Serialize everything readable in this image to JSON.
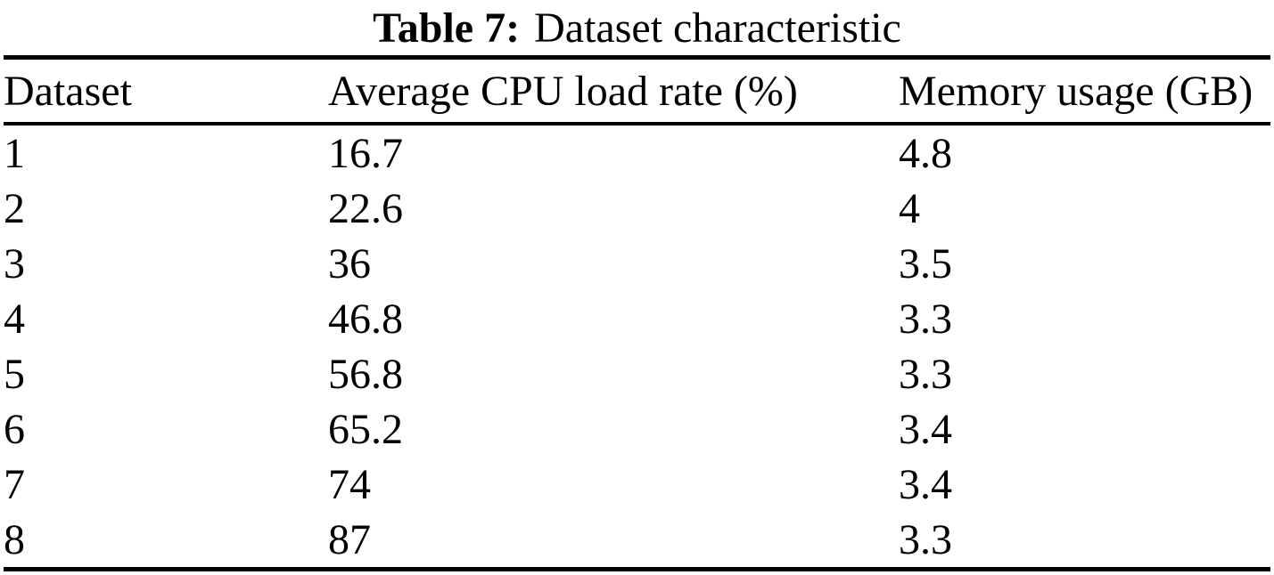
{
  "title": {
    "label": "Table 7:",
    "caption": "Dataset characteristic"
  },
  "table": {
    "columns": [
      "Dataset",
      "Average CPU load rate (%)",
      "Memory usage (GB)"
    ],
    "rows": [
      [
        "1",
        "16.7",
        "4.8"
      ],
      [
        "2",
        "22.6",
        "4"
      ],
      [
        "3",
        "36",
        "3.5"
      ],
      [
        "4",
        "46.8",
        "3.3"
      ],
      [
        "5",
        "56.8",
        "3.3"
      ],
      [
        "6",
        "65.2",
        "3.4"
      ],
      [
        "7",
        "74",
        "3.4"
      ],
      [
        "8",
        "87",
        "3.3"
      ]
    ]
  },
  "chart_data": {
    "type": "table",
    "title": "Table 7: Dataset characteristic",
    "columns": [
      "Dataset",
      "Average CPU load rate (%)",
      "Memory usage (GB)"
    ],
    "rows": [
      [
        1,
        16.7,
        4.8
      ],
      [
        2,
        22.6,
        4
      ],
      [
        3,
        36,
        3.5
      ],
      [
        4,
        46.8,
        3.3
      ],
      [
        5,
        56.8,
        3.3
      ],
      [
        6,
        65.2,
        3.4
      ],
      [
        7,
        74,
        3.4
      ],
      [
        8,
        87,
        3.3
      ]
    ]
  },
  "colors": {
    "text": "#000000",
    "background": "#ffffff",
    "rule": "#000000"
  }
}
